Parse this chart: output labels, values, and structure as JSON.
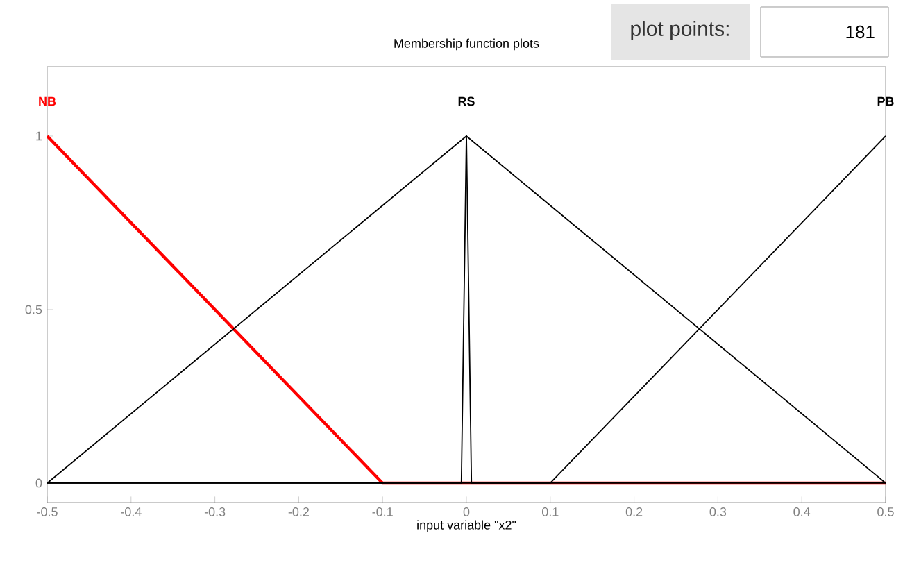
{
  "chart_data": {
    "type": "line",
    "title": "Membership function plots",
    "xlabel": "input variable \"x2\"",
    "xlim": [
      -0.5,
      0.5
    ],
    "xticks": [
      -0.5,
      -0.4,
      -0.3,
      -0.2,
      -0.1,
      0,
      0.1,
      0.2,
      0.3,
      0.4,
      0.5
    ],
    "ylim": [
      -0.056,
      1.2
    ],
    "yticks": [
      0,
      0.5,
      1
    ],
    "grid": false,
    "legend": false,
    "marker": "none",
    "line_style": "solid",
    "series": [
      {
        "name": "NB",
        "color": "#ff0000",
        "x": [
          -0.5,
          -0.1,
          0.5
        ],
        "values": [
          1,
          0,
          0
        ]
      },
      {
        "name": "RS",
        "color": "#000000",
        "x": [
          -0.5,
          0,
          0.5
        ],
        "values": [
          0,
          1,
          0
        ]
      },
      {
        "color": "#000000",
        "x": [
          -0.5,
          -0.006,
          0,
          0.006,
          0.5
        ],
        "values": [
          0,
          0,
          1,
          0,
          0
        ]
      },
      {
        "name": "PB",
        "color": "#000000",
        "x": [
          -0.5,
          0.1,
          0.5
        ],
        "values": [
          0,
          0,
          1
        ]
      }
    ],
    "annotations": [
      "plot points:",
      "181"
    ]
  }
}
